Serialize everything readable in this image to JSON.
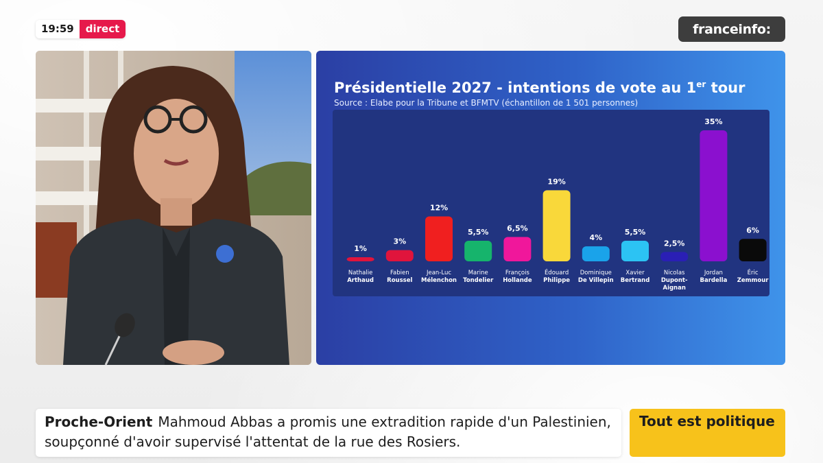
{
  "header": {
    "time": "19:59",
    "live_label": "direct",
    "channel": "franceinfo:"
  },
  "chart_panel": {
    "title_main": "Présidentielle 2027 - intentions de vote au 1",
    "title_sup": "er",
    "title_end": " tour",
    "source": "Source : Elabe pour la Tribune et BFMTV (échantillon de 1 501 personnes)"
  },
  "chart_data": {
    "type": "bar",
    "title": "Présidentielle 2027 - intentions de vote au 1er tour",
    "subtitle": "Source : Elabe pour la Tribune et BFMTV (échantillon de 1 501 personnes)",
    "xlabel": "",
    "ylabel": "",
    "ylim": [
      0,
      35
    ],
    "grid": false,
    "categories": [
      {
        "first": "Nathalie",
        "last": "Arthaud"
      },
      {
        "first": "Fabien",
        "last": "Roussel"
      },
      {
        "first": "Jean-Luc",
        "last": "Mélenchon"
      },
      {
        "first": "Marine",
        "last": "Tondelier"
      },
      {
        "first": "François",
        "last": "Hollande"
      },
      {
        "first": "Édouard",
        "last": "Philippe"
      },
      {
        "first": "Dominique",
        "last": "De Villepin"
      },
      {
        "first": "Xavier",
        "last": "Bertrand"
      },
      {
        "first": "Nicolas",
        "last": "Dupont-",
        "last2": "Aignan"
      },
      {
        "first": "Jordan",
        "last": "Bardella"
      },
      {
        "first": "Éric",
        "last": "Zemmour"
      }
    ],
    "values": [
      1,
      3,
      12,
      5.5,
      6.5,
      19,
      4,
      5.5,
      2.5,
      35,
      6
    ],
    "value_labels": [
      "1%",
      "3%",
      "12%",
      "5,5%",
      "6,5%",
      "19%",
      "4%",
      "5,5%",
      "2,5%",
      "35%",
      "6%"
    ],
    "colors": [
      "#e0143c",
      "#e0143c",
      "#f01f1f",
      "#16b46c",
      "#f0179b",
      "#f9d83a",
      "#1aa3ea",
      "#2cc3f3",
      "#2a1fb5",
      "#8b10cf",
      "#0a0a0a"
    ]
  },
  "ticker": {
    "topic": "Proche-Orient",
    "text": "Mahmoud Abbas a promis une extradition rapide d'un Palestinien, soupçonné d'avoir supervisé l'attentat de la rue des Rosiers."
  },
  "show": {
    "name": "Tout est politique"
  }
}
